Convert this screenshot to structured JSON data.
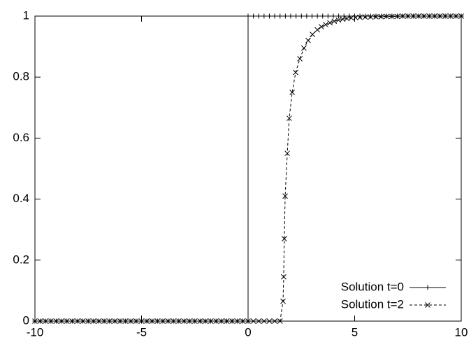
{
  "chart_data": {
    "type": "line",
    "xlim": [
      -10,
      10
    ],
    "ylim": [
      0,
      1
    ],
    "xticks": [
      -10,
      -5,
      0,
      5,
      10
    ],
    "yticks": [
      0,
      0.2,
      0.4,
      0.6,
      0.8,
      1
    ],
    "legend": "lower right",
    "series": [
      {
        "name": "Solution t=0",
        "color": "#000000",
        "marker": "plus",
        "dashed": false,
        "x": [
          -10,
          -9.75,
          -9.5,
          -9.25,
          -9,
          -8.75,
          -8.5,
          -8.25,
          -8,
          -7.75,
          -7.5,
          -7.25,
          -7,
          -6.75,
          -6.5,
          -6.25,
          -6,
          -5.75,
          -5.5,
          -5.25,
          -5,
          -4.75,
          -4.5,
          -4.25,
          -4,
          -3.75,
          -3.5,
          -3.25,
          -3,
          -2.75,
          -2.5,
          -2.25,
          -2,
          -1.75,
          -1.5,
          -1.25,
          -1,
          -0.75,
          -0.5,
          -0.25,
          0,
          0,
          0.25,
          0.5,
          0.75,
          1,
          1.25,
          1.5,
          1.75,
          2,
          2.25,
          2.5,
          2.75,
          3,
          3.25,
          3.5,
          3.75,
          4,
          4.25,
          4.5,
          4.75,
          5,
          5.25,
          5.5,
          5.75,
          6,
          6.25,
          6.5,
          6.75,
          7,
          7.25,
          7.5,
          7.75,
          8,
          8.25,
          8.5,
          8.75,
          9,
          9.25,
          9.5,
          9.75,
          10
        ],
        "values": [
          0,
          0,
          0,
          0,
          0,
          0,
          0,
          0,
          0,
          0,
          0,
          0,
          0,
          0,
          0,
          0,
          0,
          0,
          0,
          0,
          0,
          0,
          0,
          0,
          0,
          0,
          0,
          0,
          0,
          0,
          0,
          0,
          0,
          0,
          0,
          0,
          0,
          0,
          0,
          0,
          0,
          1,
          1,
          1,
          1,
          1,
          1,
          1,
          1,
          1,
          1,
          1,
          1,
          1,
          1,
          1,
          1,
          1,
          1,
          1,
          1,
          1,
          1,
          1,
          1,
          1,
          1,
          1,
          1,
          1,
          1,
          1,
          1,
          1,
          1,
          1,
          1,
          1,
          1,
          1,
          1,
          1
        ]
      },
      {
        "name": "Solution t=2",
        "color": "#000000",
        "marker": "cross",
        "dashed": true,
        "x": [
          -10,
          -9.75,
          -9.5,
          -9.25,
          -9,
          -8.75,
          -8.5,
          -8.25,
          -8,
          -7.75,
          -7.5,
          -7.25,
          -7,
          -6.75,
          -6.5,
          -6.25,
          -6,
          -5.75,
          -5.5,
          -5.25,
          -5,
          -4.75,
          -4.5,
          -4.25,
          -4,
          -3.75,
          -3.5,
          -3.25,
          -3,
          -2.75,
          -2.5,
          -2.25,
          -2,
          -1.75,
          -1.5,
          -1.25,
          -1,
          -0.75,
          -0.5,
          -0.25,
          0,
          0.25,
          0.5,
          0.75,
          1,
          1.25,
          1.5,
          1.64,
          1.67,
          1.7,
          1.74,
          1.84,
          1.93,
          2.07,
          2.23,
          2.43,
          2.62,
          2.82,
          3.02,
          3.25,
          3.44,
          3.64,
          3.84,
          4.04,
          4.24,
          4.44,
          4.64,
          4.84,
          5.04,
          5.25,
          5.5,
          5.75,
          6,
          6.25,
          6.5,
          6.75,
          7,
          7.25,
          7.5,
          7.75,
          8,
          8.25,
          8.5,
          8.75,
          9,
          9.25,
          9.5,
          9.75,
          10
        ],
        "values": [
          0,
          0,
          0,
          0,
          0,
          0,
          0,
          0,
          0,
          0,
          0,
          0,
          0,
          0,
          0,
          0,
          0,
          0,
          0,
          0,
          0,
          0,
          0,
          0,
          0,
          0,
          0,
          0,
          0,
          0,
          0,
          0,
          0,
          0,
          0,
          0,
          0,
          0,
          0,
          0,
          0,
          0,
          0,
          0,
          0,
          0,
          0,
          0.065,
          0.145,
          0.27,
          0.41,
          0.55,
          0.665,
          0.75,
          0.815,
          0.86,
          0.895,
          0.92,
          0.94,
          0.955,
          0.965,
          0.972,
          0.978,
          0.983,
          0.987,
          0.99,
          0.992,
          0.994,
          0.995,
          0.996,
          0.997,
          0.997,
          0.998,
          0.998,
          0.999,
          0.999,
          0.999,
          1,
          1,
          1,
          1,
          1,
          1,
          1,
          1,
          1,
          1,
          1,
          1
        ]
      }
    ]
  }
}
